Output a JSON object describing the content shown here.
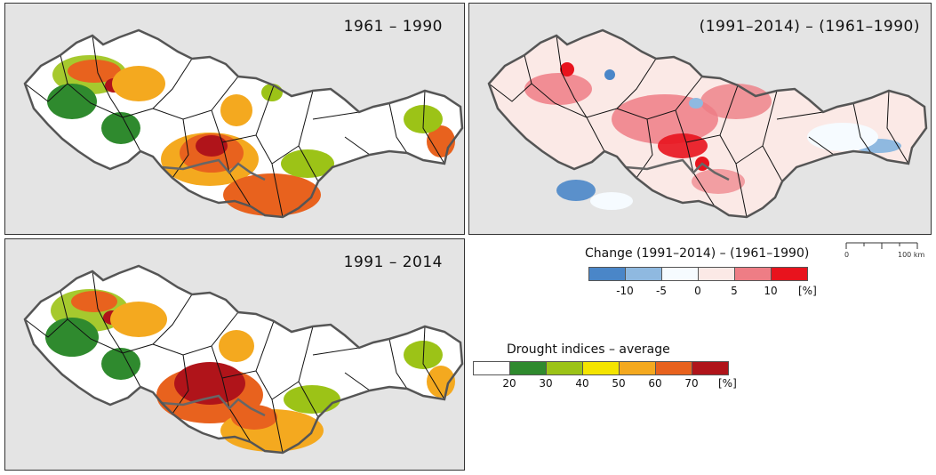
{
  "maps": [
    {
      "title": "1961 – 1990"
    },
    {
      "title": "(1991–2014) – (1961–1990)"
    },
    {
      "title": "1991 – 2014"
    }
  ],
  "change_legend": {
    "title": "Change (1991–2014) – (1961–1990)",
    "ticks": [
      "-10",
      "-5",
      "0",
      "5",
      "10"
    ],
    "unit": "[%]",
    "colors": [
      "#4a86c8",
      "#8fb9e0",
      "#f6fbff",
      "#fbe9e6",
      "#ee7d85",
      "#e8131d"
    ]
  },
  "drought_legend": {
    "title": "Drought indices – average",
    "ticks": [
      "20",
      "30",
      "40",
      "50",
      "60",
      "70"
    ],
    "unit": "[%]",
    "colors": [
      "#ffffff",
      "#2f8a2e",
      "#9cc317",
      "#f4e400",
      "#f4a91f",
      "#e8621e",
      "#b0141a"
    ]
  },
  "scale_bar": {
    "start": "0",
    "end": "100 km"
  },
  "palette": {
    "hillshade": "#e4e4e4",
    "country_fill": "#ffffff",
    "border": "#555555"
  }
}
